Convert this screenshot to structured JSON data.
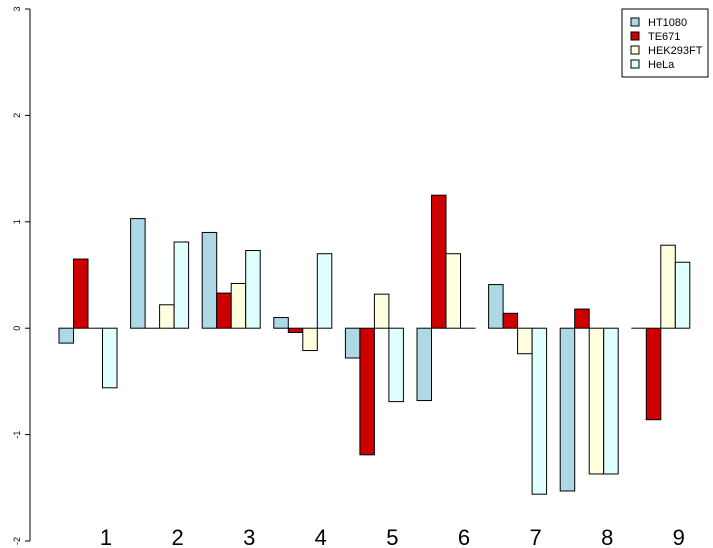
{
  "chart_data": {
    "type": "bar",
    "categories": [
      "1",
      "2",
      "3",
      "4",
      "5",
      "6",
      "7",
      "8",
      "9"
    ],
    "series": [
      {
        "name": "HT1080",
        "color": "#add8e6",
        "values": [
          -0.14,
          1.03,
          0.9,
          0.1,
          -0.28,
          -0.68,
          0.41,
          -1.53,
          0.0
        ]
      },
      {
        "name": "TE671",
        "color": "#cd0000",
        "values": [
          0.65,
          0.0,
          0.33,
          -0.04,
          -1.19,
          1.25,
          0.14,
          0.18,
          -0.86
        ]
      },
      {
        "name": "HEK293FT",
        "color": "#ffffe0",
        "values": [
          0.0,
          0.22,
          0.42,
          -0.21,
          0.32,
          0.7,
          -0.24,
          -1.37,
          0.78
        ]
      },
      {
        "name": "HeLa",
        "color": "#e0ffff",
        "values": [
          -0.56,
          0.81,
          0.73,
          0.7,
          -0.69,
          0.0,
          -1.56,
          -1.37,
          0.62
        ]
      }
    ],
    "yticks": [
      -2,
      -1,
      0,
      1,
      2,
      3
    ],
    "ylim": [
      -2,
      3
    ],
    "legend_position": "top-right",
    "title": "",
    "xlabel": "",
    "ylabel": ""
  }
}
